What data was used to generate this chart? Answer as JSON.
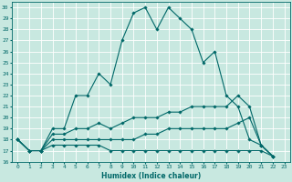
{
  "title": "",
  "xlabel": "Humidex (Indice chaleur)",
  "xlim": [
    -0.5,
    23.5
  ],
  "ylim": [
    16,
    30.5
  ],
  "yticks": [
    16,
    17,
    18,
    19,
    20,
    21,
    22,
    23,
    24,
    25,
    26,
    27,
    28,
    29,
    30
  ],
  "xticks": [
    0,
    1,
    2,
    3,
    4,
    5,
    6,
    7,
    8,
    9,
    10,
    11,
    12,
    13,
    14,
    15,
    16,
    17,
    18,
    19,
    20,
    21,
    22,
    23
  ],
  "background_color": "#c8e8e0",
  "grid_color": "#ffffff",
  "line_color": "#006868",
  "series": [
    [
      18,
      17,
      17,
      19,
      19,
      22,
      22,
      24,
      23,
      27,
      29.5,
      30,
      28,
      30,
      29,
      28,
      25,
      26,
      22,
      21,
      18,
      17.5,
      16.5
    ],
    [
      18,
      17,
      17,
      18.5,
      18.5,
      19,
      19,
      19.5,
      19,
      19.5,
      20,
      20,
      20,
      20.5,
      20.5,
      21,
      21,
      21,
      21,
      22,
      21,
      17.5,
      16.5
    ],
    [
      18,
      17,
      17,
      18,
      18,
      18,
      18,
      18,
      18,
      18,
      18,
      18.5,
      18.5,
      19,
      19,
      19,
      19,
      19,
      19,
      19.5,
      20,
      17.5,
      16.5
    ],
    [
      18,
      17,
      17,
      17.5,
      17.5,
      17.5,
      17.5,
      17.5,
      17,
      17,
      17,
      17,
      17,
      17,
      17,
      17,
      17,
      17,
      17,
      17,
      17,
      17,
      16.5
    ]
  ],
  "x_values": [
    0,
    1,
    2,
    3,
    4,
    5,
    6,
    7,
    8,
    9,
    10,
    11,
    12,
    13,
    14,
    15,
    16,
    17,
    18,
    19,
    20,
    21,
    22
  ]
}
